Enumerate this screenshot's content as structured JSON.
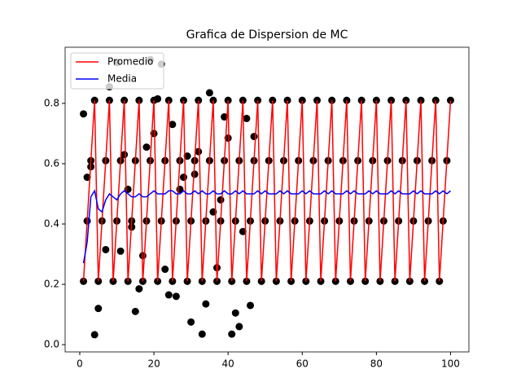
{
  "chart_data": {
    "type": "scatter-line",
    "title": "Grafica de Dispersion de MC",
    "xlim": [
      -3.95,
      104.95
    ],
    "ylim": [
      -0.024,
      0.986
    ],
    "xticks": [
      0,
      20,
      40,
      60,
      80,
      100
    ],
    "yticks": [
      {
        "value": 0,
        "label": "0.0"
      },
      0.2,
      0.4,
      0.6,
      0.8
    ],
    "legend": "upper left",
    "scatter": {
      "color": "#000000",
      "x": [
        1,
        2,
        3,
        4,
        5,
        6,
        7,
        8,
        9,
        10,
        11,
        12,
        13,
        14,
        15,
        16,
        17,
        18,
        19,
        20,
        21,
        22,
        23,
        24,
        25,
        26,
        27,
        28,
        29,
        30,
        31,
        32,
        33,
        34,
        35,
        36,
        37,
        38,
        39,
        40,
        41,
        42,
        43,
        44,
        45,
        46,
        47,
        48,
        49,
        50,
        51,
        52,
        53,
        54,
        55,
        56,
        57,
        58,
        59,
        60,
        61,
        62,
        63,
        64,
        65,
        66,
        67,
        68,
        69,
        70,
        71,
        72,
        73,
        74,
        75,
        76,
        77,
        78,
        79,
        80,
        81,
        82,
        83,
        84,
        85,
        86,
        87,
        88,
        89,
        90,
        91,
        92,
        93,
        94,
        95,
        96,
        97,
        98,
        99,
        100,
        1,
        2,
        3,
        4,
        5,
        8,
        7,
        10,
        11,
        12,
        13,
        14,
        15,
        16,
        17,
        18,
        19,
        20,
        21,
        22,
        23,
        24,
        25,
        26,
        27,
        28,
        29,
        30,
        31,
        32,
        33,
        34,
        35,
        36,
        37,
        38,
        39,
        40,
        41,
        42,
        43,
        44,
        45,
        46,
        47
      ],
      "y": [
        0.21,
        0.41,
        0.61,
        0.81,
        0.21,
        0.41,
        0.61,
        0.81,
        0.21,
        0.41,
        0.61,
        0.81,
        0.21,
        0.41,
        0.61,
        0.81,
        0.21,
        0.41,
        0.61,
        0.81,
        0.21,
        0.41,
        0.61,
        0.81,
        0.21,
        0.41,
        0.61,
        0.81,
        0.21,
        0.41,
        0.61,
        0.81,
        0.21,
        0.41,
        0.61,
        0.81,
        0.21,
        0.41,
        0.61,
        0.81,
        0.21,
        0.41,
        0.61,
        0.81,
        0.21,
        0.41,
        0.61,
        0.81,
        0.21,
        0.41,
        0.61,
        0.81,
        0.21,
        0.41,
        0.61,
        0.81,
        0.21,
        0.41,
        0.61,
        0.81,
        0.21,
        0.41,
        0.61,
        0.81,
        0.21,
        0.41,
        0.61,
        0.81,
        0.21,
        0.41,
        0.61,
        0.81,
        0.21,
        0.41,
        0.61,
        0.81,
        0.21,
        0.41,
        0.61,
        0.81,
        0.21,
        0.41,
        0.61,
        0.81,
        0.21,
        0.41,
        0.61,
        0.81,
        0.21,
        0.41,
        0.61,
        0.81,
        0.21,
        0.41,
        0.61,
        0.81,
        0.21,
        0.41,
        0.61,
        0.81,
        0.765,
        0.555,
        0.59,
        0.033,
        0.12,
        0.855,
        0.315,
        0.935,
        0.31,
        0.63,
        0.515,
        0.39,
        0.11,
        0.185,
        0.295,
        0.655,
        0.945,
        0.7,
        0.815,
        0.93,
        0.25,
        0.165,
        0.73,
        0.16,
        0.515,
        0.555,
        0.625,
        0.075,
        0.565,
        0.64,
        0.035,
        0.135,
        0.835,
        0.44,
        0.255,
        0.48,
        0.755,
        0.685,
        0.035,
        0.105,
        0.06,
        0.375,
        0.75,
        0.13,
        0.69
      ]
    },
    "x": [
      1,
      2,
      3,
      4,
      5,
      6,
      7,
      8,
      9,
      10,
      11,
      12,
      13,
      14,
      15,
      16,
      17,
      18,
      19,
      20,
      21,
      22,
      23,
      24,
      25,
      26,
      27,
      28,
      29,
      30,
      31,
      32,
      33,
      34,
      35,
      36,
      37,
      38,
      39,
      40,
      41,
      42,
      43,
      44,
      45,
      46,
      47,
      48,
      49,
      50,
      51,
      52,
      53,
      54,
      55,
      56,
      57,
      58,
      59,
      60,
      61,
      62,
      63,
      64,
      65,
      66,
      67,
      68,
      69,
      70,
      71,
      72,
      73,
      74,
      75,
      76,
      77,
      78,
      79,
      80,
      81,
      82,
      83,
      84,
      85,
      86,
      87,
      88,
      89,
      90,
      91,
      92,
      93,
      94,
      95,
      96,
      97,
      98,
      99,
      100
    ],
    "series": [
      {
        "name": "Promedio",
        "color": "#ff0000",
        "values": [
          0.21,
          0.41,
          0.61,
          0.81,
          0.21,
          0.41,
          0.61,
          0.81,
          0.21,
          0.41,
          0.61,
          0.81,
          0.21,
          0.41,
          0.61,
          0.81,
          0.21,
          0.41,
          0.61,
          0.81,
          0.21,
          0.41,
          0.61,
          0.81,
          0.21,
          0.41,
          0.61,
          0.81,
          0.21,
          0.41,
          0.61,
          0.81,
          0.21,
          0.41,
          0.61,
          0.81,
          0.21,
          0.41,
          0.61,
          0.81,
          0.21,
          0.41,
          0.61,
          0.81,
          0.21,
          0.41,
          0.61,
          0.81,
          0.21,
          0.41,
          0.61,
          0.81,
          0.21,
          0.41,
          0.61,
          0.81,
          0.21,
          0.41,
          0.61,
          0.81,
          0.21,
          0.41,
          0.61,
          0.81,
          0.21,
          0.41,
          0.61,
          0.81,
          0.21,
          0.41,
          0.61,
          0.81,
          0.21,
          0.41,
          0.61,
          0.81,
          0.21,
          0.41,
          0.61,
          0.81,
          0.21,
          0.41,
          0.61,
          0.81,
          0.21,
          0.41,
          0.61,
          0.81,
          0.21,
          0.41,
          0.61,
          0.81,
          0.21,
          0.41,
          0.61,
          0.81,
          0.21,
          0.41,
          0.61,
          0.81
        ]
      },
      {
        "name": "Media",
        "color": "#0000ff",
        "values": [
          0.27,
          0.34,
          0.49,
          0.51,
          0.45,
          0.44,
          0.48,
          0.5,
          0.49,
          0.48,
          0.5,
          0.51,
          0.5,
          0.49,
          0.49,
          0.5,
          0.49,
          0.49,
          0.5,
          0.51,
          0.5,
          0.5,
          0.5,
          0.51,
          0.51,
          0.5,
          0.5,
          0.51,
          0.5,
          0.5,
          0.51,
          0.5,
          0.51,
          0.5,
          0.5,
          0.51,
          0.5,
          0.5,
          0.51,
          0.5,
          0.5,
          0.51,
          0.5,
          0.51,
          0.5,
          0.5,
          0.5,
          0.51,
          0.5,
          0.51,
          0.5,
          0.5,
          0.5,
          0.51,
          0.5,
          0.51,
          0.5,
          0.5,
          0.5,
          0.51,
          0.5,
          0.51,
          0.5,
          0.5,
          0.5,
          0.51,
          0.5,
          0.51,
          0.5,
          0.5,
          0.5,
          0.51,
          0.5,
          0.51,
          0.5,
          0.5,
          0.5,
          0.51,
          0.5,
          0.51,
          0.5,
          0.5,
          0.5,
          0.51,
          0.5,
          0.51,
          0.5,
          0.5,
          0.5,
          0.51,
          0.5,
          0.51,
          0.5,
          0.5,
          0.5,
          0.51,
          0.5,
          0.51,
          0.5,
          0.51
        ]
      }
    ]
  }
}
